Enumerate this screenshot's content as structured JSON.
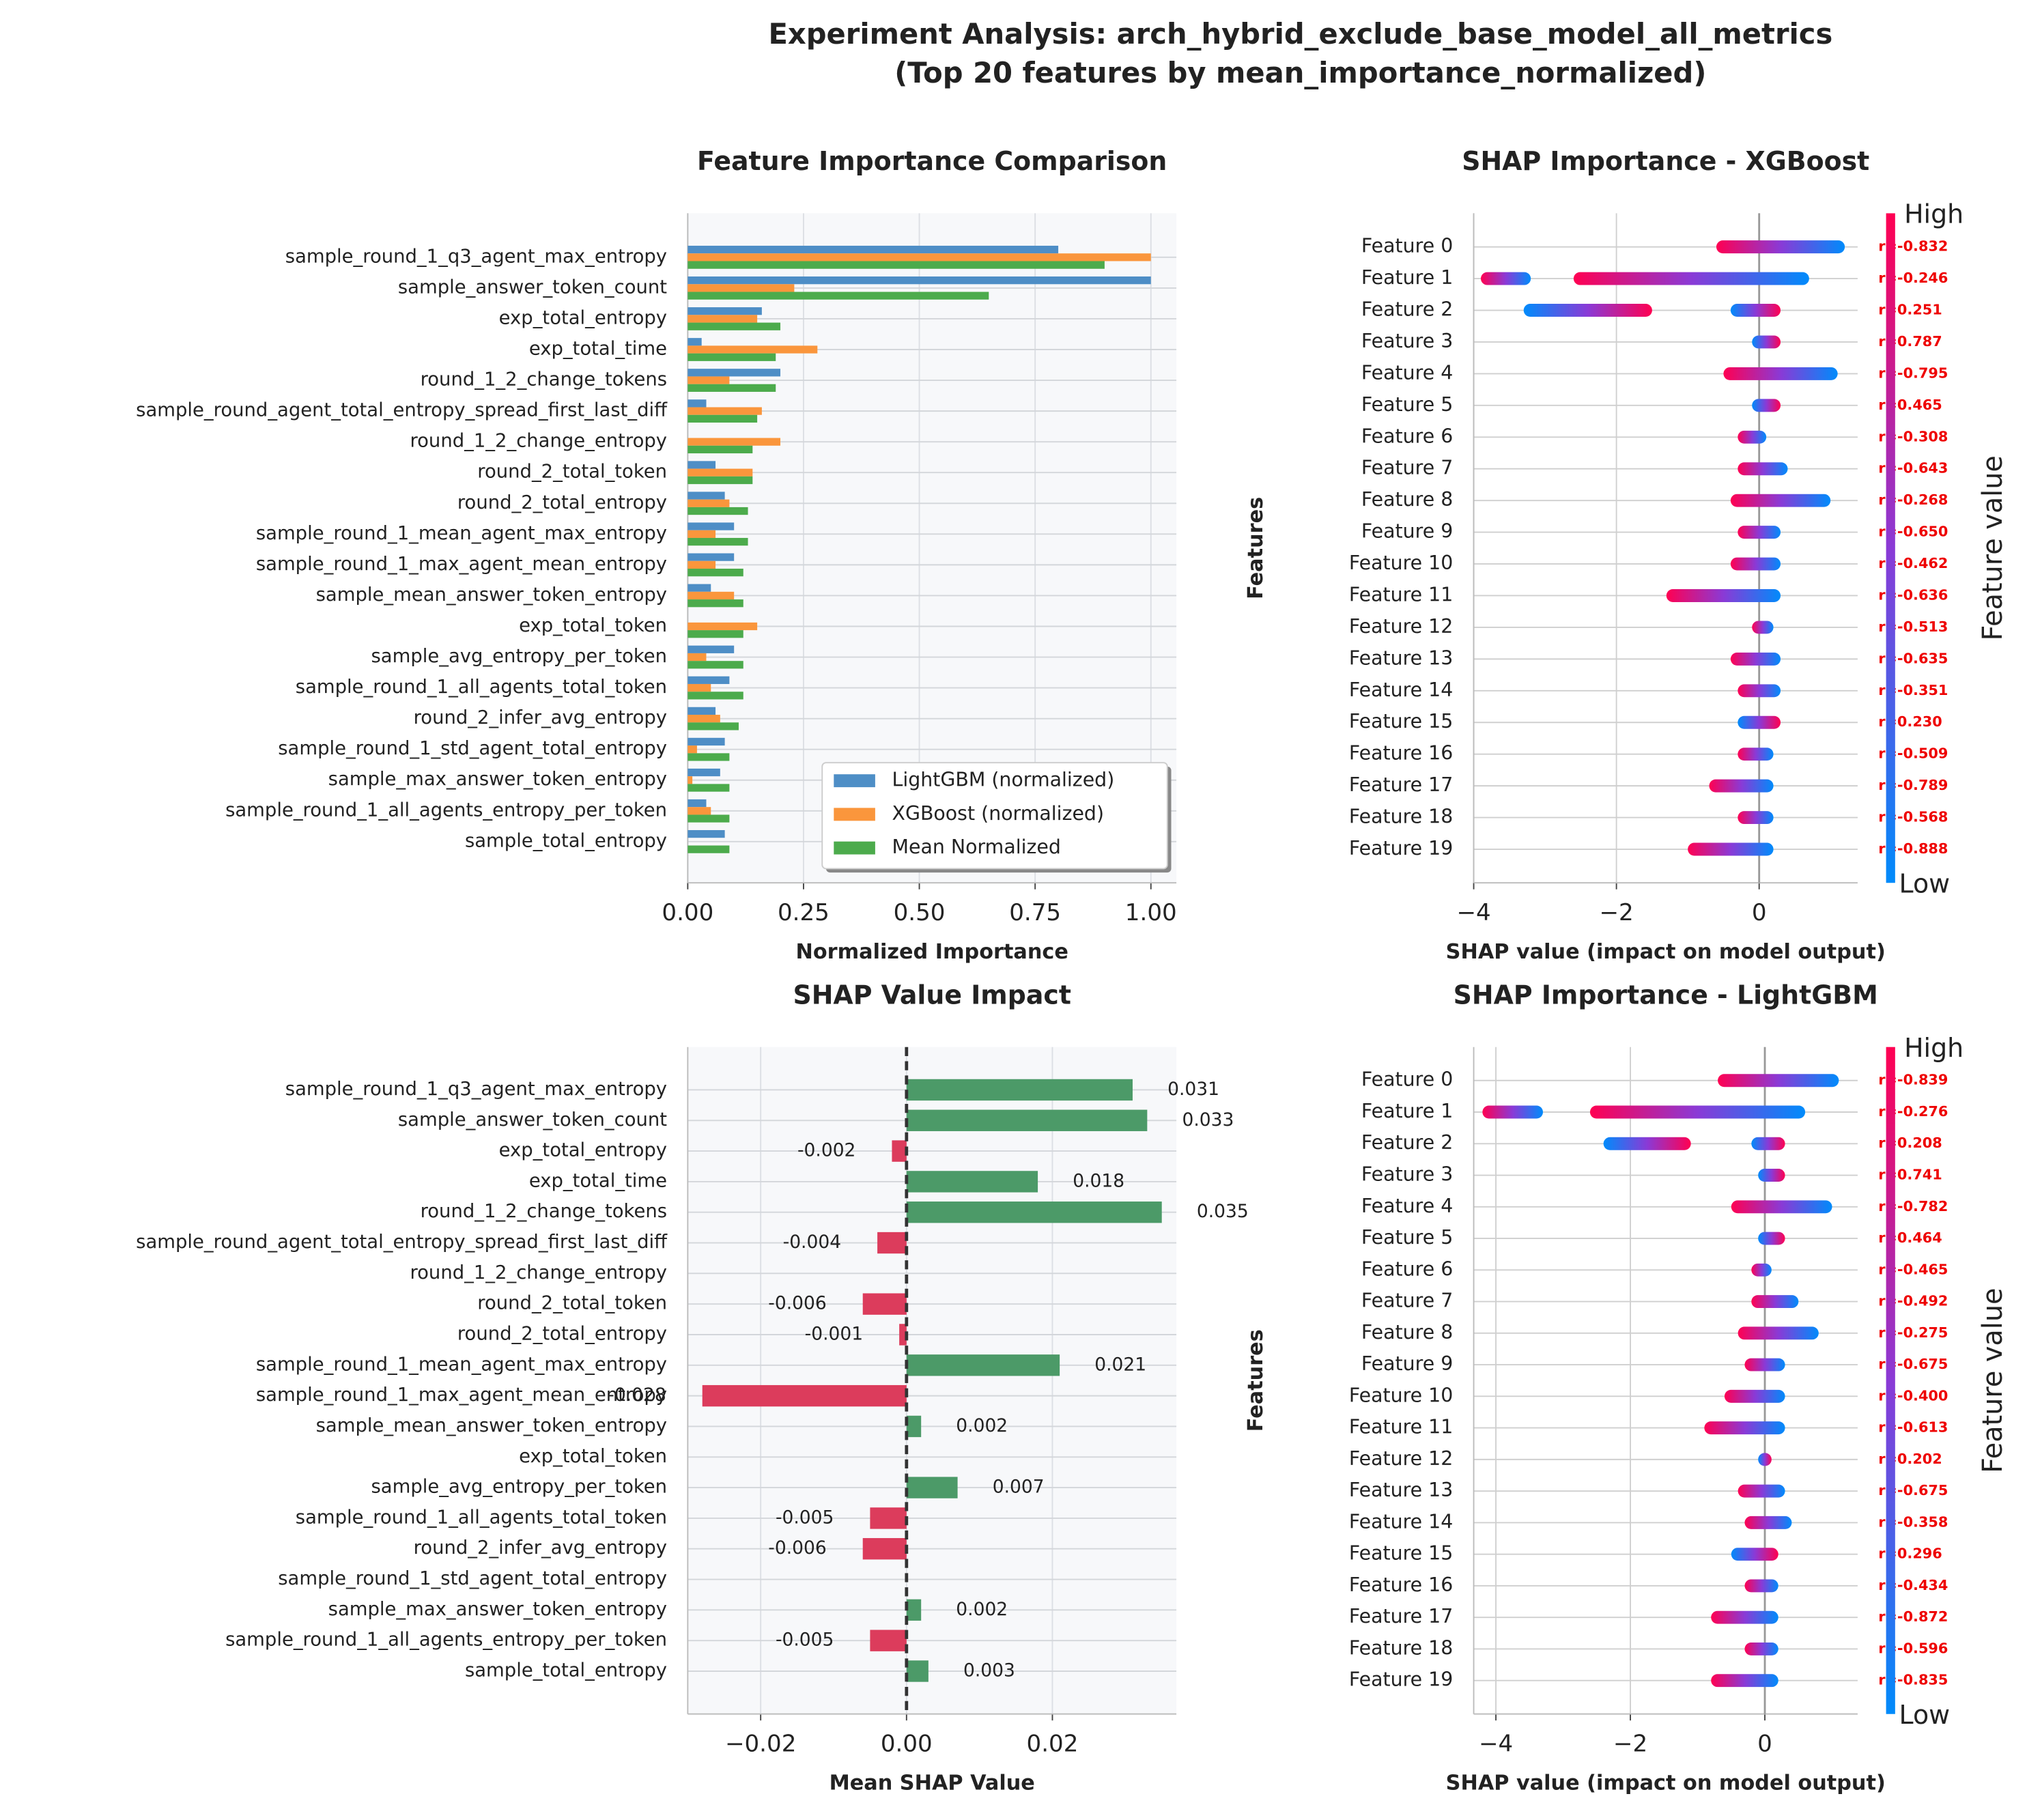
{
  "header": {
    "title": "Experiment Analysis: arch_hybrid_exclude_base_model_all_metrics",
    "subtitle": "(Top 20 features by mean_importance_normalized)"
  },
  "chart_data": [
    {
      "type": "bar",
      "orientation": "horizontal",
      "title": "Feature Importance Comparison",
      "xlabel": "Normalized Importance",
      "categories": [
        "sample_round_1_q3_agent_max_entropy",
        "sample_answer_token_count",
        "exp_total_entropy",
        "exp_total_time",
        "round_1_2_change_tokens",
        "sample_round_agent_total_entropy_spread_first_last_diff",
        "round_1_2_change_entropy",
        "round_2_total_token",
        "round_2_total_entropy",
        "sample_round_1_mean_agent_max_entropy",
        "sample_round_1_max_agent_mean_entropy",
        "sample_mean_answer_token_entropy",
        "exp_total_token",
        "sample_avg_entropy_per_token",
        "sample_round_1_all_agents_total_token",
        "round_2_infer_avg_entropy",
        "sample_round_1_std_agent_total_entropy",
        "sample_max_answer_token_entropy",
        "sample_round_1_all_agents_entropy_per_token",
        "sample_total_entropy"
      ],
      "series": [
        {
          "name": "LightGBM (normalized)",
          "color": "#4e8ec6",
          "values": [
            0.8,
            1.0,
            0.16,
            0.03,
            0.2,
            0.04,
            0.0,
            0.06,
            0.08,
            0.1,
            0.1,
            0.05,
            0.0,
            0.1,
            0.09,
            0.06,
            0.08,
            0.07,
            0.04,
            0.08
          ]
        },
        {
          "name": "XGBoost (normalized)",
          "color": "#fa963c",
          "values": [
            1.0,
            0.23,
            0.15,
            0.28,
            0.09,
            0.16,
            0.2,
            0.14,
            0.09,
            0.06,
            0.06,
            0.1,
            0.15,
            0.04,
            0.05,
            0.07,
            0.02,
            0.01,
            0.05,
            0.0
          ]
        },
        {
          "name": "Mean Normalized",
          "color": "#4cab4c",
          "values": [
            0.9,
            0.65,
            0.2,
            0.19,
            0.19,
            0.15,
            0.14,
            0.14,
            0.13,
            0.13,
            0.12,
            0.12,
            0.12,
            0.12,
            0.12,
            0.11,
            0.09,
            0.09,
            0.09,
            0.09
          ]
        }
      ],
      "xlim": [
        0,
        1.055
      ],
      "xticks": [
        {
          "value": 0,
          "label": "0.00"
        },
        0.25,
        {
          "value": 0.5,
          "label": "0.50"
        },
        0.75,
        {
          "value": 1,
          "label": "1.00"
        }
      ],
      "grid": true,
      "legend": "lower right"
    },
    {
      "type": "bar",
      "orientation": "horizontal",
      "title": "SHAP Value Impact",
      "xlabel": "Mean SHAP Value",
      "categories": [
        "sample_round_1_q3_agent_max_entropy",
        "sample_answer_token_count",
        "exp_total_entropy",
        "exp_total_time",
        "round_1_2_change_tokens",
        "sample_round_agent_total_entropy_spread_first_last_diff",
        "round_1_2_change_entropy",
        "round_2_total_token",
        "round_2_total_entropy",
        "sample_round_1_mean_agent_max_entropy",
        "sample_round_1_max_agent_mean_entropy",
        "sample_mean_answer_token_entropy",
        "exp_total_token",
        "sample_avg_entropy_per_token",
        "sample_round_1_all_agents_total_token",
        "round_2_infer_avg_entropy",
        "sample_round_1_std_agent_total_entropy",
        "sample_max_answer_token_entropy",
        "sample_round_1_all_agents_entropy_per_token",
        "sample_total_entropy"
      ],
      "values": [
        0.031,
        0.033,
        -0.002,
        0.018,
        0.035,
        -0.004,
        0,
        -0.006,
        -0.001,
        0.021,
        -0.028,
        0.002,
        0,
        0.007,
        -0.005,
        -0.006,
        0,
        0.002,
        -0.005,
        0.003
      ],
      "positive_color": "#4c9a68",
      "negative_color": "#dc3c5c",
      "xlim": [
        -0.03,
        0.037
      ],
      "xticks": [
        {
          "value": -0.02,
          "label": "−0.02"
        },
        {
          "value": 0,
          "label": "0.00"
        },
        0.02
      ],
      "grid": true
    },
    {
      "type": "beeswarm",
      "title": "SHAP Importance - XGBoost",
      "xlabel": "SHAP value (impact on model output)",
      "ylabel": "Features",
      "categories": [
        "Feature 0",
        "Feature 1",
        "Feature 2",
        "Feature 3",
        "Feature 4",
        "Feature 5",
        "Feature 6",
        "Feature 7",
        "Feature 8",
        "Feature 9",
        "Feature 10",
        "Feature 11",
        "Feature 12",
        "Feature 13",
        "Feature 14",
        "Feature 15",
        "Feature 16",
        "Feature 17",
        "Feature 18",
        "Feature 19"
      ],
      "clusters": [
        [
          [
            -0.6,
            1.2
          ]
        ],
        [
          [
            -3.9,
            -3.2
          ],
          [
            -2.6,
            0.7
          ]
        ],
        [
          [
            -3.3,
            -1.5
          ],
          [
            -0.4,
            0.3
          ]
        ],
        [
          [
            -0.1,
            0.3
          ]
        ],
        [
          [
            -0.5,
            1.1
          ]
        ],
        [
          [
            -0.1,
            0.3
          ]
        ],
        [
          [
            -0.3,
            0.1
          ]
        ],
        [
          [
            -0.3,
            0.4
          ]
        ],
        [
          [
            -0.4,
            1.0
          ]
        ],
        [
          [
            -0.3,
            0.3
          ]
        ],
        [
          [
            -0.4,
            0.3
          ]
        ],
        [
          [
            -1.3,
            0.3
          ]
        ],
        [
          [
            -0.1,
            0.2
          ]
        ],
        [
          [
            -0.4,
            0.3
          ]
        ],
        [
          [
            -0.3,
            0.3
          ]
        ],
        [
          [
            -0.3,
            0.3
          ]
        ],
        [
          [
            -0.3,
            0.2
          ]
        ],
        [
          [
            -0.7,
            0.2
          ]
        ],
        [
          [
            -0.3,
            0.2
          ]
        ],
        [
          [
            -1.0,
            0.2
          ]
        ]
      ],
      "r": [
        -0.832,
        -0.246,
        0.251,
        0.787,
        -0.795,
        0.465,
        -0.308,
        -0.643,
        -0.268,
        -0.65,
        -0.462,
        -0.636,
        -0.513,
        -0.635,
        -0.351,
        0.23,
        -0.509,
        -0.789,
        -0.568,
        -0.888
      ],
      "r_labels": [
        "r=-0.832",
        "r=-0.246",
        "r=0.251",
        "r=0.787",
        "r=-0.795",
        "r=0.465",
        "r=-0.308",
        "r=-0.643",
        "r=-0.268",
        "r=-0.650",
        "r=-0.462",
        "r=-0.636",
        "r=-0.513",
        "r=-0.635",
        "r=-0.351",
        "r=0.230",
        "r=-0.509",
        "r=-0.789",
        "r=-0.568",
        "r=-0.888"
      ],
      "colorbar_label": "Feature value",
      "colorbar_high": "High",
      "colorbar_low": "Low",
      "xlim": [
        -4.0,
        1.38
      ],
      "xticks": [
        {
          "value": -4,
          "label": "−4"
        },
        {
          "value": -2,
          "label": "−2"
        },
        0
      ],
      "grid": true
    },
    {
      "type": "beeswarm",
      "title": "SHAP Importance - LightGBM",
      "xlabel": "SHAP value (impact on model output)",
      "ylabel": "Features",
      "categories": [
        "Feature 0",
        "Feature 1",
        "Feature 2",
        "Feature 3",
        "Feature 4",
        "Feature 5",
        "Feature 6",
        "Feature 7",
        "Feature 8",
        "Feature 9",
        "Feature 10",
        "Feature 11",
        "Feature 12",
        "Feature 13",
        "Feature 14",
        "Feature 15",
        "Feature 16",
        "Feature 17",
        "Feature 18",
        "Feature 19"
      ],
      "clusters": [
        [
          [
            -0.7,
            1.1
          ]
        ],
        [
          [
            -4.2,
            -3.3
          ],
          [
            -2.6,
            0.6
          ]
        ],
        [
          [
            -2.4,
            -1.1
          ],
          [
            -0.2,
            0.3
          ]
        ],
        [
          [
            -0.1,
            0.3
          ]
        ],
        [
          [
            -0.5,
            1.0
          ]
        ],
        [
          [
            -0.1,
            0.3
          ]
        ],
        [
          [
            -0.2,
            0.1
          ]
        ],
        [
          [
            -0.2,
            0.5
          ]
        ],
        [
          [
            -0.4,
            0.8
          ]
        ],
        [
          [
            -0.3,
            0.3
          ]
        ],
        [
          [
            -0.6,
            0.3
          ]
        ],
        [
          [
            -0.9,
            0.3
          ]
        ],
        [
          [
            -0.1,
            0.1
          ]
        ],
        [
          [
            -0.4,
            0.3
          ]
        ],
        [
          [
            -0.3,
            0.4
          ]
        ],
        [
          [
            -0.5,
            0.2
          ]
        ],
        [
          [
            -0.3,
            0.2
          ]
        ],
        [
          [
            -0.8,
            0.2
          ]
        ],
        [
          [
            -0.3,
            0.2
          ]
        ],
        [
          [
            -0.8,
            0.2
          ]
        ]
      ],
      "r": [
        -0.839,
        -0.276,
        0.208,
        0.741,
        -0.782,
        0.464,
        -0.465,
        -0.492,
        -0.275,
        -0.675,
        -0.4,
        -0.613,
        0.202,
        -0.675,
        -0.358,
        0.296,
        -0.434,
        -0.872,
        -0.596,
        -0.835
      ],
      "r_labels": [
        "r=-0.839",
        "r=-0.276",
        "r=0.208",
        "r=0.741",
        "r=-0.782",
        "r=0.464",
        "r=-0.465",
        "r=-0.492",
        "r=-0.275",
        "r=-0.675",
        "r=-0.400",
        "r=-0.613",
        "r=0.202",
        "r=-0.675",
        "r=-0.358",
        "r=0.296",
        "r=-0.434",
        "r=-0.872",
        "r=-0.596",
        "r=-0.835"
      ],
      "colorbar_label": "Feature value",
      "colorbar_high": "High",
      "colorbar_low": "Low",
      "xlim": [
        -4.33,
        1.38
      ],
      "xticks": [
        {
          "value": -4,
          "label": "−4"
        },
        {
          "value": -2,
          "label": "−2"
        },
        0
      ],
      "grid": true
    }
  ]
}
